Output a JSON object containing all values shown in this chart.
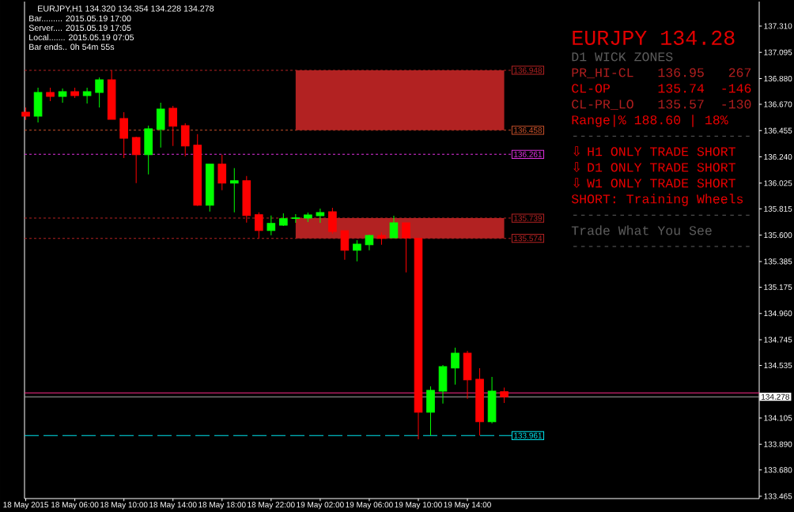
{
  "chart_data": {
    "type": "candlestick",
    "title": "EURJPY,H1 134.320 134.354 134.228 134.278",
    "x": [
      "2015-05-18T02:00",
      "2015-05-18T03:00",
      "2015-05-18T04:00",
      "2015-05-18T05:00",
      "2015-05-18T06:00",
      "2015-05-18T07:00",
      "2015-05-18T08:00",
      "2015-05-18T09:00",
      "2015-05-18T10:00",
      "2015-05-18T11:00",
      "2015-05-18T12:00",
      "2015-05-18T13:00",
      "2015-05-18T14:00",
      "2015-05-18T15:00",
      "2015-05-18T16:00",
      "2015-05-18T17:00",
      "2015-05-18T18:00",
      "2015-05-18T19:00",
      "2015-05-18T20:00",
      "2015-05-18T21:00",
      "2015-05-18T22:00",
      "2015-05-18T23:00",
      "2015-05-19T00:00",
      "2015-05-19T01:00",
      "2015-05-19T02:00",
      "2015-05-19T03:00",
      "2015-05-19T04:00",
      "2015-05-19T05:00",
      "2015-05-19T06:00",
      "2015-05-19T07:00",
      "2015-05-19T08:00",
      "2015-05-19T09:00",
      "2015-05-19T10:00",
      "2015-05-19T11:00",
      "2015-05-19T12:00",
      "2015-05-19T13:00",
      "2015-05-19T14:00",
      "2015-05-19T15:00",
      "2015-05-19T16:00",
      "2015-05-19T17:00"
    ],
    "ohlc": [
      [
        136.605,
        136.644,
        136.542,
        136.573
      ],
      [
        136.573,
        136.805,
        136.521,
        136.767
      ],
      [
        136.767,
        136.805,
        136.696,
        136.734
      ],
      [
        136.734,
        136.799,
        136.683,
        136.773
      ],
      [
        136.773,
        136.805,
        136.721,
        136.741
      ],
      [
        136.741,
        136.805,
        136.676,
        136.773
      ],
      [
        136.767,
        136.889,
        136.644,
        136.87
      ],
      [
        136.87,
        136.948,
        136.547,
        136.547
      ],
      [
        136.553,
        136.605,
        136.23,
        136.392
      ],
      [
        136.398,
        136.405,
        136.026,
        136.258
      ],
      [
        136.258,
        136.495,
        136.097,
        136.469
      ],
      [
        136.465,
        136.683,
        136.316,
        136.631
      ],
      [
        136.637,
        136.657,
        136.329,
        136.491
      ],
      [
        136.495,
        136.515,
        136.245,
        136.329
      ],
      [
        136.336,
        136.426,
        135.838,
        135.845
      ],
      [
        135.845,
        136.181,
        135.793,
        136.181
      ],
      [
        136.181,
        136.258,
        135.968,
        136.026
      ],
      [
        136.026,
        136.148,
        135.787,
        136.045
      ],
      [
        136.045,
        136.084,
        135.703,
        135.761
      ],
      [
        135.767,
        135.787,
        135.573,
        135.638
      ],
      [
        135.638,
        135.761,
        135.599,
        135.696
      ],
      [
        135.681,
        135.778,
        135.675,
        135.735
      ],
      [
        135.737,
        135.772,
        135.701,
        135.741
      ],
      [
        135.739,
        135.785,
        135.707,
        135.765
      ],
      [
        135.759,
        135.817,
        135.701,
        135.785
      ],
      [
        135.791,
        135.823,
        135.61,
        135.63
      ],
      [
        135.636,
        135.636,
        135.399,
        135.477
      ],
      [
        135.477,
        135.559,
        135.386,
        135.526
      ],
      [
        135.522,
        135.604,
        135.477,
        135.597
      ],
      [
        135.597,
        135.623,
        135.522,
        135.573
      ],
      [
        135.578,
        135.759,
        135.578,
        135.701
      ],
      [
        135.701,
        135.701,
        135.296,
        135.578
      ],
      [
        135.575,
        135.575,
        133.931,
        134.152
      ],
      [
        134.152,
        134.364,
        133.961,
        134.331
      ],
      [
        134.325,
        134.538,
        134.223,
        134.525
      ],
      [
        134.514,
        134.68,
        134.378,
        134.635
      ],
      [
        134.635,
        134.654,
        134.262,
        134.417
      ],
      [
        134.422,
        134.512,
        133.961,
        134.075
      ],
      [
        134.075,
        134.441,
        134.062,
        134.325
      ],
      [
        134.32,
        134.354,
        134.228,
        134.278
      ]
    ],
    "colors": [
      "#ff0000",
      "#00ff00",
      "#ff0000",
      "#00ff00",
      "#ff0000",
      "#00ff00",
      "#00ff00",
      "#ff0000",
      "#ff0000",
      "#ff0000",
      "#00ff00",
      "#00ff00",
      "#ff0000",
      "#ff0000",
      "#ff0000",
      "#00ff00",
      "#ff0000",
      "#00ff00",
      "#ff0000",
      "#ff0000",
      "#00ff00",
      "#00ff00",
      "#00ff00",
      "#00ff00",
      "#00ff00",
      "#ff0000",
      "#ff0000",
      "#00ff00",
      "#00ff00",
      "#ff0000",
      "#00ff00",
      "#ff0000",
      "#ff0000",
      "#00ff00",
      "#00ff00",
      "#00ff00",
      "#ff0000",
      "#ff0000",
      "#00ff00",
      "#ff0000"
    ],
    "xlim": [
      "2015-05-18T01:54",
      "2015-05-20T13:47"
    ],
    "xticks": [
      {
        "value": "2015-05-18T02:00",
        "label": "18 May 2015"
      },
      {
        "value": "2015-05-18T06:00",
        "label": "18 May 06:00"
      },
      {
        "value": "2015-05-18T10:00",
        "label": "18 May 10:00"
      },
      {
        "value": "2015-05-18T14:00",
        "label": "18 May 14:00"
      },
      {
        "value": "2015-05-18T18:00",
        "label": "18 May 18:00"
      },
      {
        "value": "2015-05-18T22:00",
        "label": "18 May 22:00"
      },
      {
        "value": "2015-05-19T02:00",
        "label": "19 May 02:00"
      },
      {
        "value": "2015-05-19T06:00",
        "label": "19 May 06:00"
      },
      {
        "value": "2015-05-19T10:00",
        "label": "19 May 10:00"
      },
      {
        "value": "2015-05-19T14:00",
        "label": "19 May 14:00"
      }
    ],
    "ylim": [
      133.446,
      137.51
    ],
    "yticks": [
      {
        "value": 137.31,
        "label": "137.310"
      },
      137.095,
      {
        "value": 136.88,
        "label": "136.880"
      },
      {
        "value": 136.67,
        "label": "136.670"
      },
      136.455,
      {
        "value": 136.24,
        "label": "136.240"
      },
      136.025,
      135.815,
      {
        "value": 135.6,
        "label": "135.600"
      },
      135.385,
      135.175,
      {
        "value": 134.96,
        "label": "134.960"
      },
      134.745,
      134.535,
      134.105,
      {
        "value": 133.89,
        "label": "133.890"
      },
      {
        "value": 133.68,
        "label": "133.680"
      },
      133.465
    ],
    "bands": [
      {
        "axis": "y",
        "from": 136.458,
        "to": 136.948,
        "color": "#b22222"
      },
      {
        "axis": "y",
        "from": 135.574,
        "to": 135.739,
        "color": "#b22222"
      }
    ],
    "ref_lines": [
      {
        "axis": "y",
        "value": 136.948,
        "label": "136.948",
        "color": "#b22222",
        "line_style": "dotted"
      },
      {
        "axis": "y",
        "value": 136.458,
        "label": "136.458",
        "color": "#c8502a",
        "line_style": "dotted"
      },
      {
        "axis": "y",
        "value": 136.261,
        "label": "136.261",
        "color": "#e030e0",
        "line_style": "dotted"
      },
      {
        "axis": "y",
        "value": 135.739,
        "label": "135.739",
        "color": "#b22222",
        "line_style": "dotted"
      },
      {
        "axis": "y",
        "value": 135.574,
        "label": "135.574",
        "color": "#b22222",
        "line_style": "dotted"
      },
      {
        "axis": "y",
        "value": 133.961,
        "label": "133.961",
        "color": "#00e5ee",
        "line_style": "dashed"
      },
      {
        "axis": "y",
        "value": 134.31,
        "color": "#ff2a8a",
        "line_style": "solid"
      },
      {
        "axis": "y",
        "value": 134.278,
        "label": "134.278",
        "color": "#a8a8a8",
        "line_style": "solid"
      }
    ],
    "annotations": [
      "Bar......... 2015.05.19 17:00",
      "Server.... 2015.05.19 17:05",
      "Local....... 2015.05.19 07:05",
      "Bar ends.. 0h 54m 55s",
      "EURJPY 134.28",
      "D1 WICK ZONES",
      "PR_HI-CL   136.95   267",
      "CL-OP      135.74  -146",
      "CL-PR_LO   135.57  -130",
      "Range|% 188.60 | 18%",
      "-----------------------",
      "⇩ H1 ONLY TRADE SHORT",
      "⇩ D1 ONLY TRADE SHORT",
      "⇩ W1 ONLY TRADE SHORT",
      "SHORT: Training Wheels",
      "-----------------------",
      "Trade What You See",
      "-----------------------"
    ]
  }
}
